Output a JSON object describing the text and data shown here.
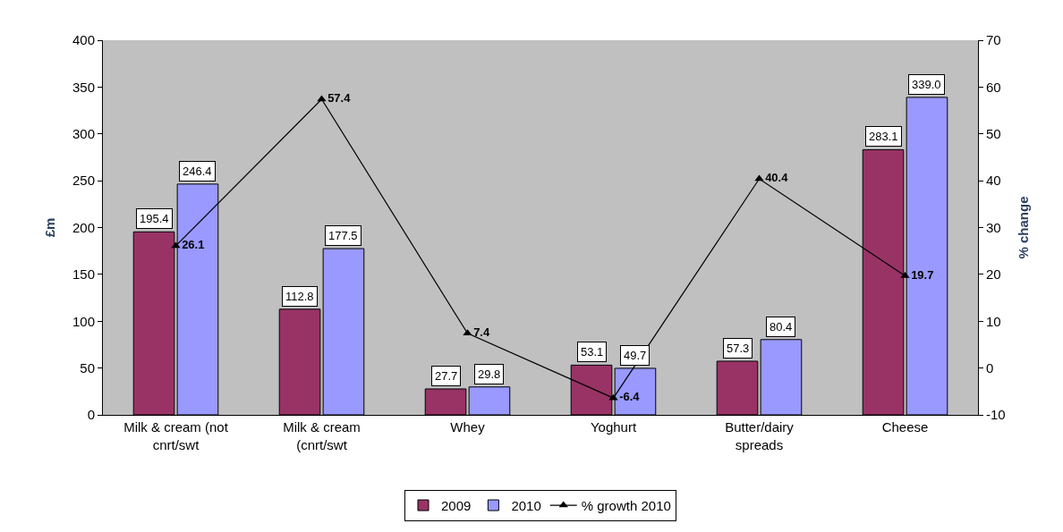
{
  "chart_data": {
    "type": "bar",
    "categories": [
      "Milk & cream (not cnrt/swt",
      "Milk & cream (cnrt/swt",
      "Whey",
      "Yoghurt",
      "Butter/dairy spreads",
      "Cheese"
    ],
    "series": [
      {
        "name": "2009",
        "color": "#993366",
        "values": [
          195.4,
          112.8,
          27.7,
          53.1,
          57.3,
          283.1
        ],
        "value_labels": [
          "195.4",
          "112.8",
          "27.7",
          "53.1",
          "57.3",
          "283.1"
        ]
      },
      {
        "name": "2010",
        "color": "#9999ff",
        "values": [
          246.4,
          177.5,
          29.8,
          49.7,
          80.4,
          339.0
        ],
        "value_labels": [
          "246.4",
          "177.5",
          "29.8",
          "49.7",
          "80.4",
          "339.0"
        ]
      },
      {
        "name": "% growth 2010",
        "type": "line",
        "axis": "y2",
        "color": "#000000",
        "marker": "triangle",
        "values": [
          26.1,
          57.4,
          7.4,
          -6.4,
          40.4,
          19.7
        ],
        "value_labels": [
          "26.1",
          "57.4",
          "7.4",
          "-6.4",
          "40.4",
          "19.7"
        ]
      }
    ],
    "ylabel": "£m",
    "y2label": "% change",
    "ylim": [
      0,
      400
    ],
    "yticks": [
      0,
      50,
      100,
      150,
      200,
      250,
      300,
      350,
      400
    ],
    "y2lim": [
      -10,
      70
    ],
    "y2ticks": [
      -10,
      0,
      10,
      20,
      30,
      40,
      50,
      60,
      70
    ],
    "grid": false,
    "legend": "bottom"
  }
}
